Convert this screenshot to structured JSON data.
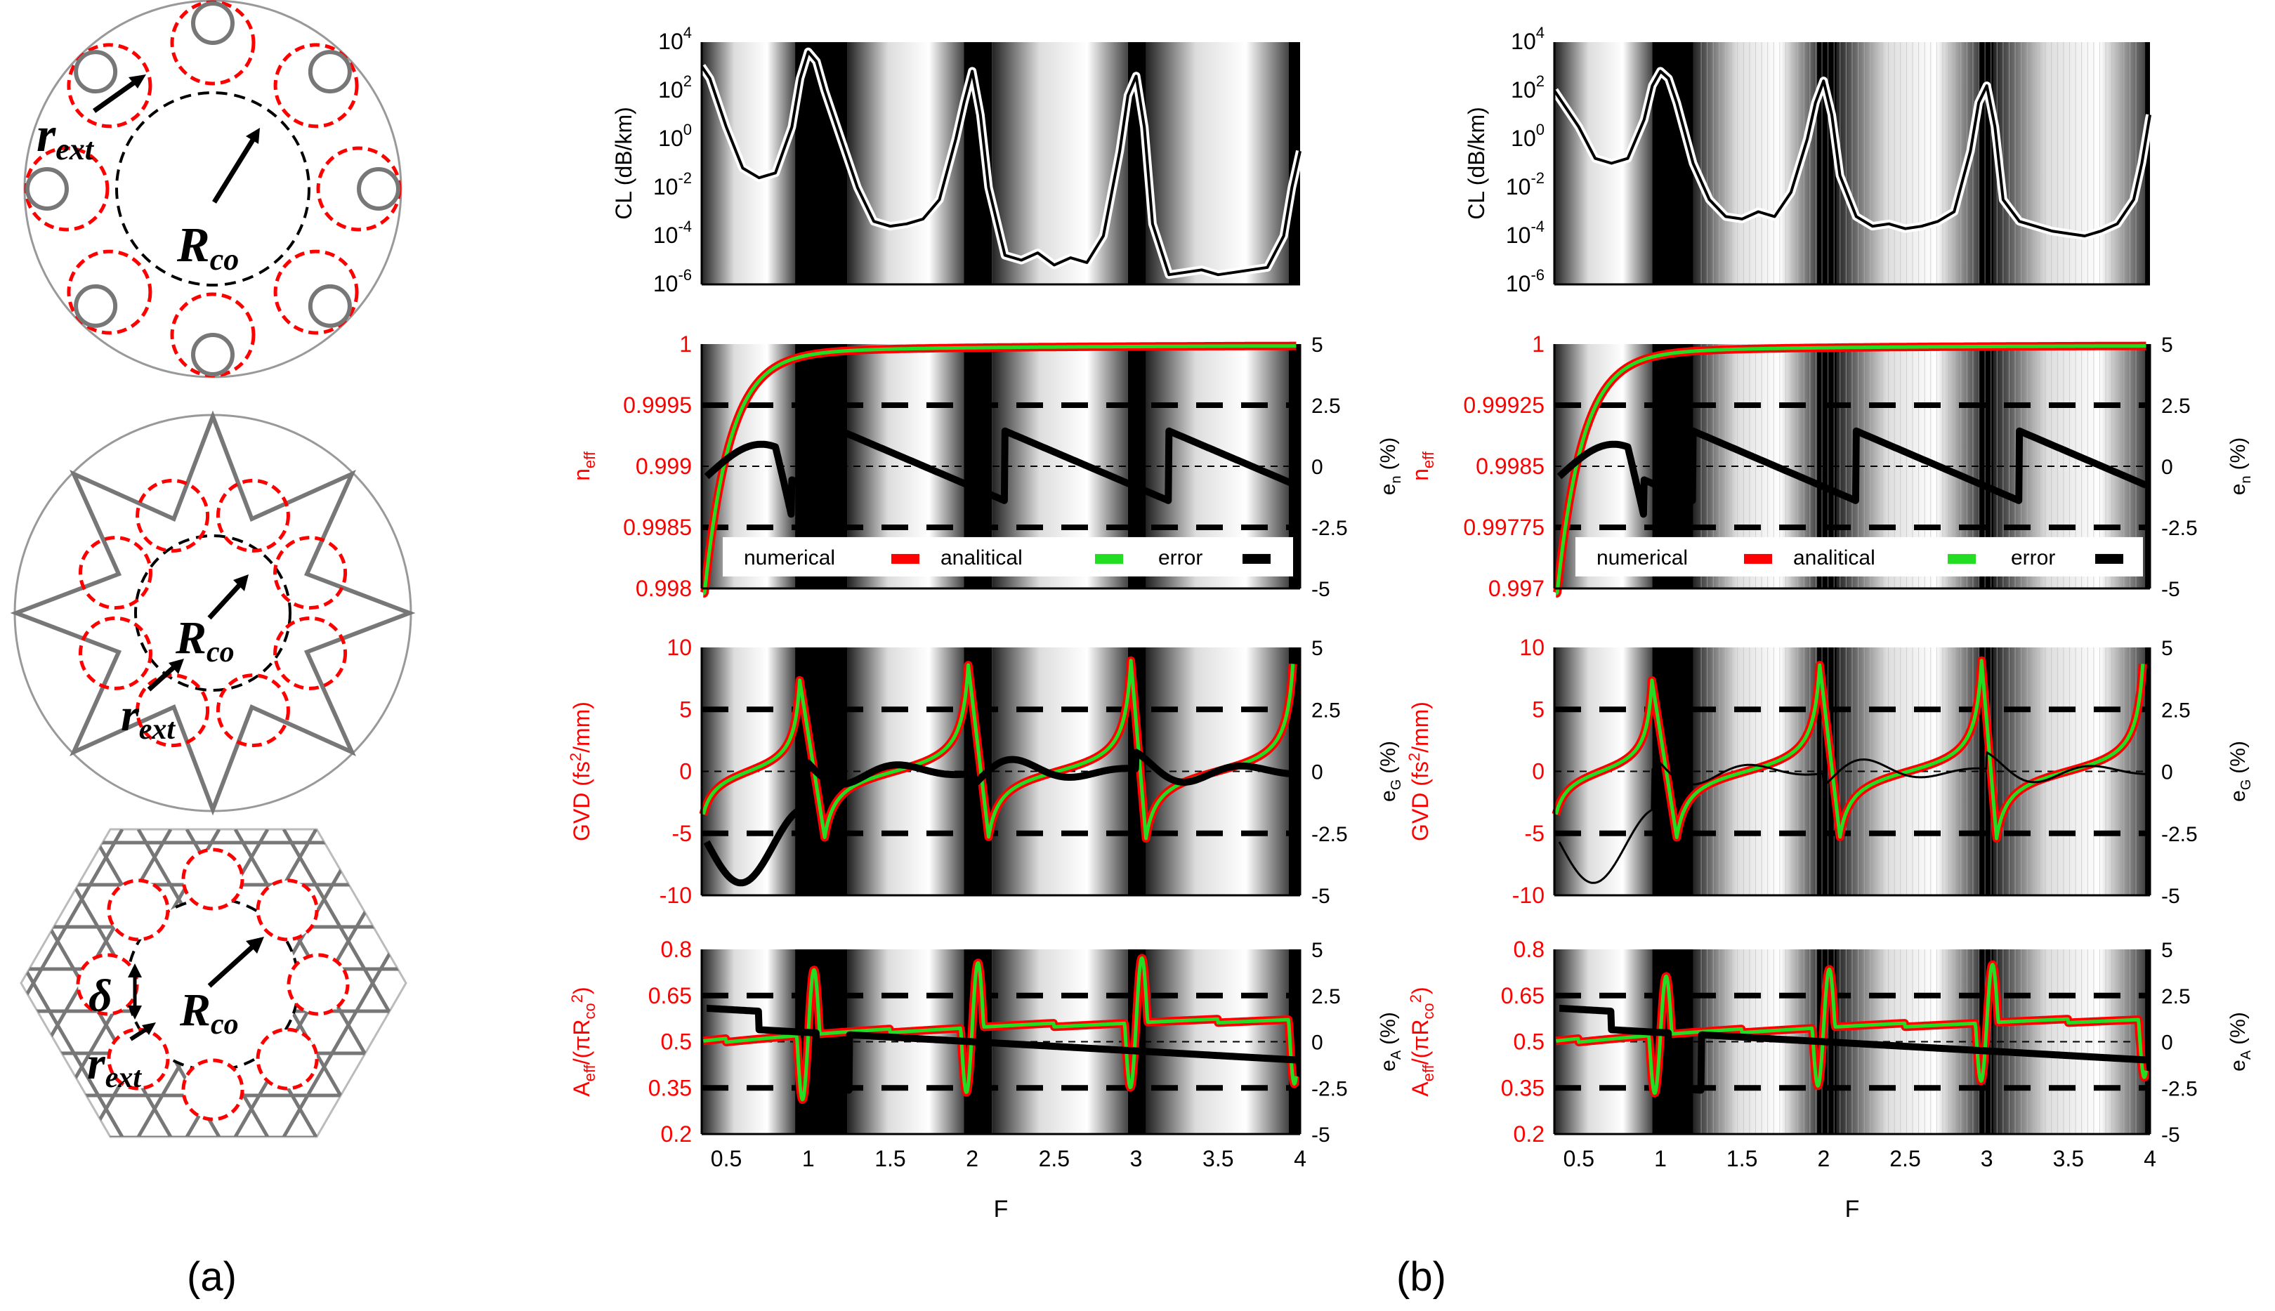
{
  "labels": {
    "a": "(a)",
    "b": "(b)"
  },
  "schematic": {
    "r_ext": "r",
    "r_ext_sub": "ext",
    "R_co": "R",
    "R_co_sub": "co",
    "delta": "δ"
  },
  "chart_data": {
    "type": "line",
    "xlabel": "F",
    "xlim": [
      0.35,
      4
    ],
    "xticks": [
      0.5,
      1,
      1.5,
      2,
      2.5,
      3,
      3.5,
      4
    ],
    "xticklabels": [
      "0.5",
      "1",
      "1.5",
      "2",
      "2.5",
      "3",
      "3.5",
      "4"
    ],
    "legend": [
      {
        "label": "numerical",
        "color": "#ff0000"
      },
      {
        "label": "analitical",
        "color": "#22dd22"
      },
      {
        "label": "error",
        "color": "#000000"
      }
    ],
    "rows": [
      {
        "key": "cl",
        "ylabel": "CL (dB/km)",
        "yscale": "log",
        "ylim_exp": [
          -6,
          4
        ],
        "yticks_exp": [
          4,
          2,
          0,
          -2,
          -4,
          -6
        ]
      },
      {
        "key": "neff",
        "ylabel": "n",
        "ylabel_sub": "eff",
        "ylabel_color": "#ff0000",
        "yticks_left": {
          "left": [
            "1",
            "0.9995",
            "0.999",
            "0.9985",
            "0.998"
          ],
          "right": [
            "1",
            "0.99925",
            "0.9985",
            "0.99775",
            "0.997"
          ]
        },
        "ylabel_right": "e",
        "ylabel_right_sub": "n",
        "ylabel_right_unit": "(%)",
        "yticks_right": [
          "5",
          "2.5",
          "0",
          "-2.5",
          "-5"
        ]
      },
      {
        "key": "gvd",
        "ylabel": "GVD (fs",
        "ylabel_sup": "2",
        "ylabel_tail": "/mm)",
        "ylabel_color": "#ff0000",
        "yticks_left": [
          "10",
          "5",
          "0",
          "-5",
          "-10"
        ],
        "ylabel_right": "e",
        "ylabel_right_sub": "G",
        "ylabel_right_unit": "(%)",
        "yticks_right": [
          "5",
          "2.5",
          "0",
          "-2.5",
          "-5"
        ]
      },
      {
        "key": "aeff",
        "ylabel": "A",
        "ylabel_sub": "eff",
        "ylabel_mid": "/(πR",
        "ylabel_sub2": "co",
        "ylabel_sup": "2",
        "ylabel_end": ")",
        "ylabel_color": "#ff0000",
        "yticks_left": [
          "0.8",
          "0.65",
          "0.5",
          "0.35",
          "0.2"
        ],
        "ylabel_right": "e",
        "ylabel_right_sub": "A",
        "ylabel_right_unit": "(%)",
        "yticks_right": [
          "5",
          "2.5",
          "0",
          "-2.5",
          "-5"
        ]
      }
    ],
    "series": {
      "cl_left": {
        "F": [
          0.35,
          0.4,
          0.5,
          0.6,
          0.7,
          0.8,
          0.9,
          0.95,
          1.0,
          1.05,
          1.1,
          1.2,
          1.3,
          1.4,
          1.5,
          1.6,
          1.7,
          1.8,
          1.9,
          1.95,
          2.0,
          2.05,
          2.1,
          2.2,
          2.3,
          2.4,
          2.5,
          2.6,
          2.7,
          2.8,
          2.9,
          2.95,
          3.0,
          3.05,
          3.1,
          3.2,
          3.3,
          3.4,
          3.5,
          3.6,
          3.7,
          3.8,
          3.9,
          3.95,
          4.0
        ],
        "log10_CL": [
          3.0,
          2.5,
          0.5,
          -1.2,
          -1.6,
          -1.4,
          0.5,
          2.5,
          3.6,
          3.2,
          2.0,
          0,
          -2.0,
          -3.4,
          -3.6,
          -3.5,
          -3.3,
          -2.5,
          0,
          1.5,
          2.8,
          1.0,
          -2.0,
          -4.8,
          -5.0,
          -4.7,
          -5.2,
          -4.9,
          -5.1,
          -4.0,
          -0.5,
          1.8,
          2.6,
          0.5,
          -3.5,
          -5.6,
          -5.5,
          -5.4,
          -5.6,
          -5.5,
          -5.4,
          -5.3,
          -4.0,
          -2.0,
          -0.5
        ]
      },
      "cl_right": {
        "F": [
          0.35,
          0.4,
          0.5,
          0.6,
          0.7,
          0.8,
          0.9,
          0.95,
          1.0,
          1.05,
          1.1,
          1.2,
          1.3,
          1.4,
          1.5,
          1.6,
          1.7,
          1.8,
          1.9,
          1.95,
          2.0,
          2.05,
          2.1,
          2.2,
          2.3,
          2.4,
          2.5,
          2.6,
          2.7,
          2.8,
          2.9,
          2.95,
          3.0,
          3.05,
          3.1,
          3.2,
          3.3,
          3.4,
          3.5,
          3.6,
          3.7,
          3.8,
          3.9,
          3.95,
          4.0
        ],
        "log10_CL": [
          2.0,
          1.5,
          0.5,
          -0.8,
          -1.0,
          -0.8,
          0.8,
          2.2,
          2.8,
          2.5,
          1.5,
          -1.0,
          -2.5,
          -3.2,
          -3.3,
          -3.0,
          -3.2,
          -2.2,
          0,
          1.5,
          2.4,
          1.0,
          -1.5,
          -3.2,
          -3.6,
          -3.5,
          -3.7,
          -3.6,
          -3.4,
          -3.0,
          -0.5,
          1.5,
          2.2,
          0.5,
          -2.5,
          -3.4,
          -3.6,
          -3.8,
          -3.9,
          -4.0,
          -3.8,
          -3.5,
          -2.5,
          -1.0,
          1.0
        ]
      }
    }
  }
}
